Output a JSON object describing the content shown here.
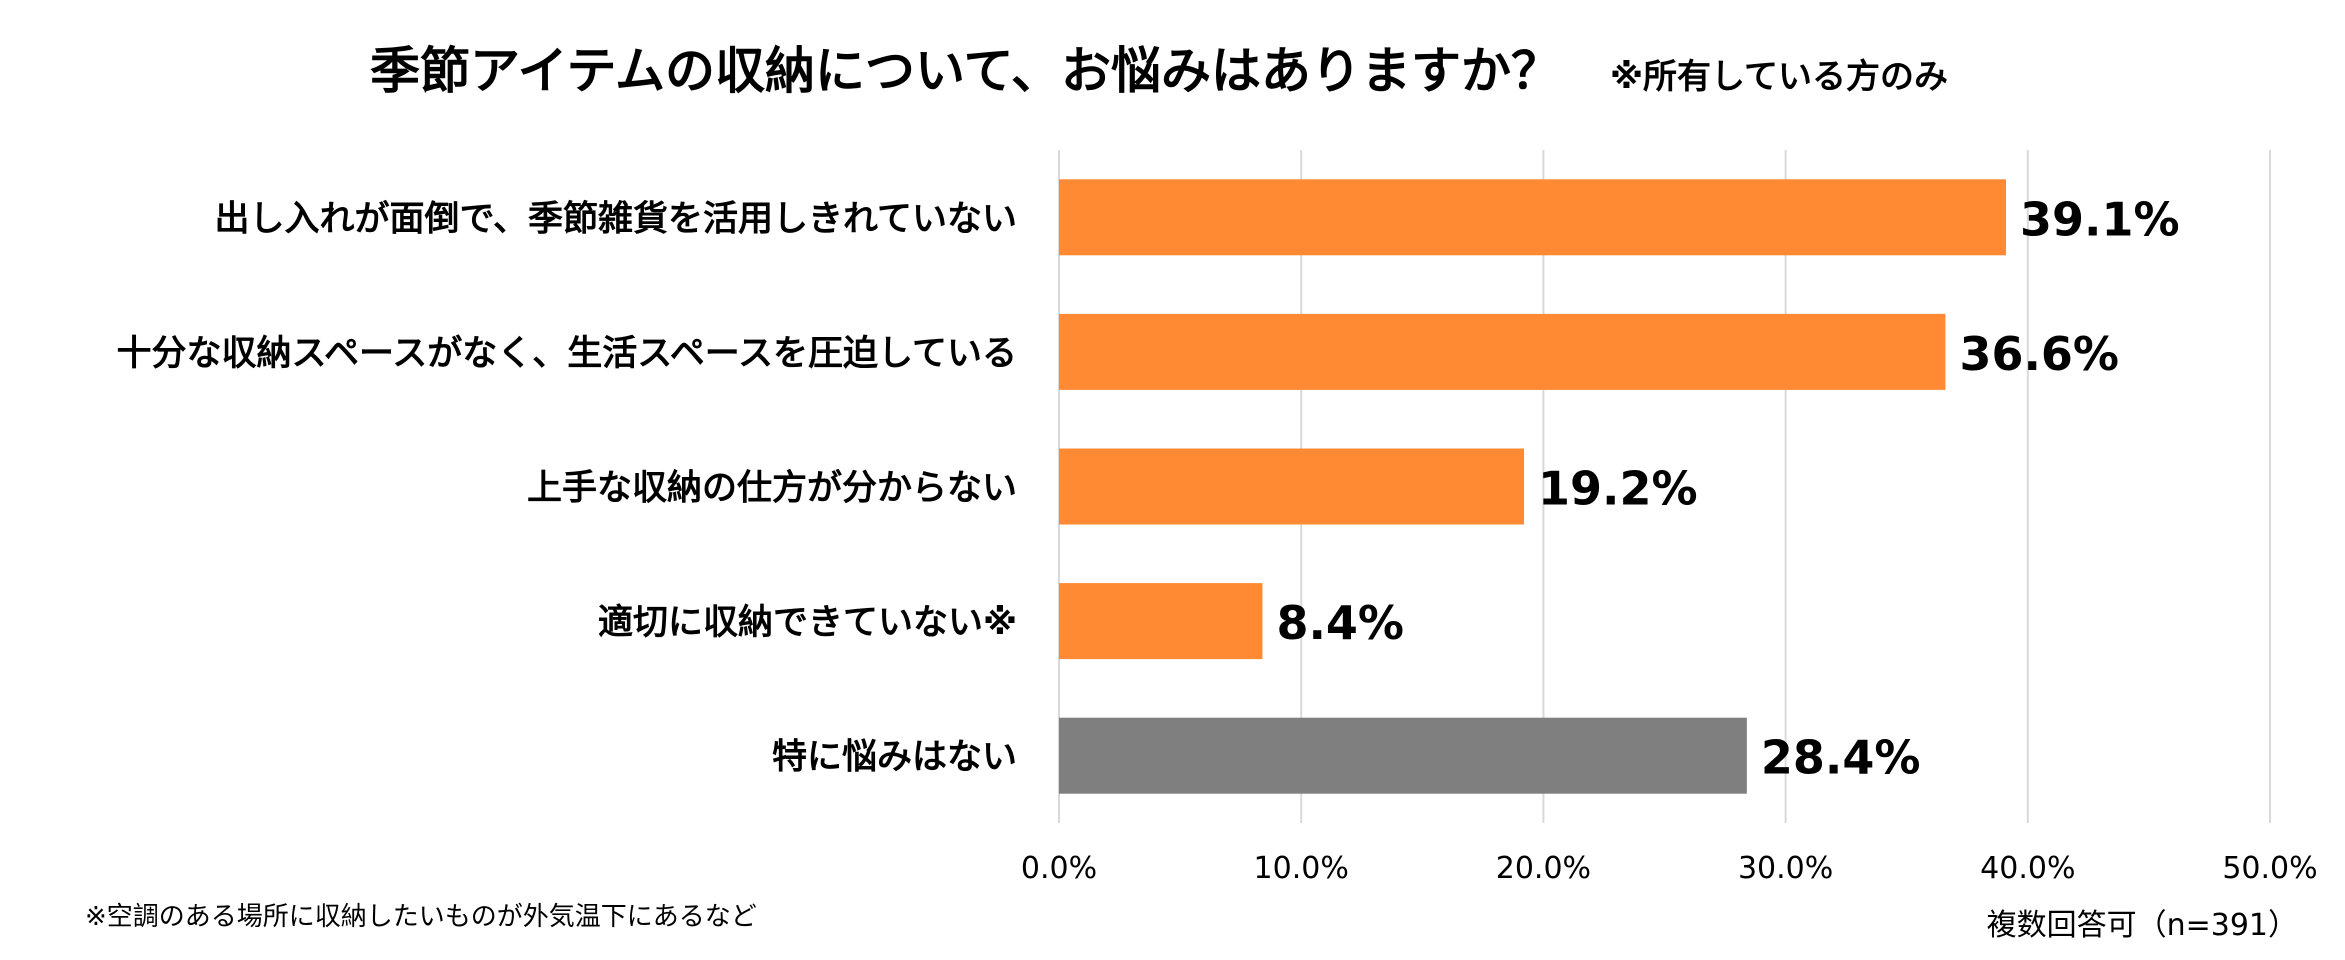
{
  "chart_data": {
    "type": "bar",
    "orientation": "horizontal",
    "title": "季節アイテムの収納について、お悩みはありますか？",
    "subtitle": "※所有している方のみ",
    "categories": [
      "出し入れが面倒で、季節雑貨を活用しきれていない",
      "十分な収納スペースがなく、生活スペースを圧迫している",
      "上手な収納の仕方が分からない",
      "適切に収納できていない※",
      "特に悩みはない"
    ],
    "values": [
      39.1,
      36.6,
      19.2,
      8.4,
      28.4
    ],
    "value_labels": [
      "39.1%",
      "36.6%",
      "19.2%",
      "8.4%",
      "28.4%"
    ],
    "bar_colors": [
      "#FF8A33",
      "#FF8A33",
      "#FF8A33",
      "#FF8A33",
      "#7F7F7F"
    ],
    "xlim": [
      0,
      50
    ],
    "xticks": [
      "0.0%",
      "10.0%",
      "20.0%",
      "30.0%",
      "40.0%",
      "50.0%"
    ],
    "grid": true,
    "xlabel": "",
    "ylabel": "",
    "footnote": "※空調のある場所に収納したいものが外気温下にあるなど",
    "sample_note": "複数回答可（n=391）"
  }
}
